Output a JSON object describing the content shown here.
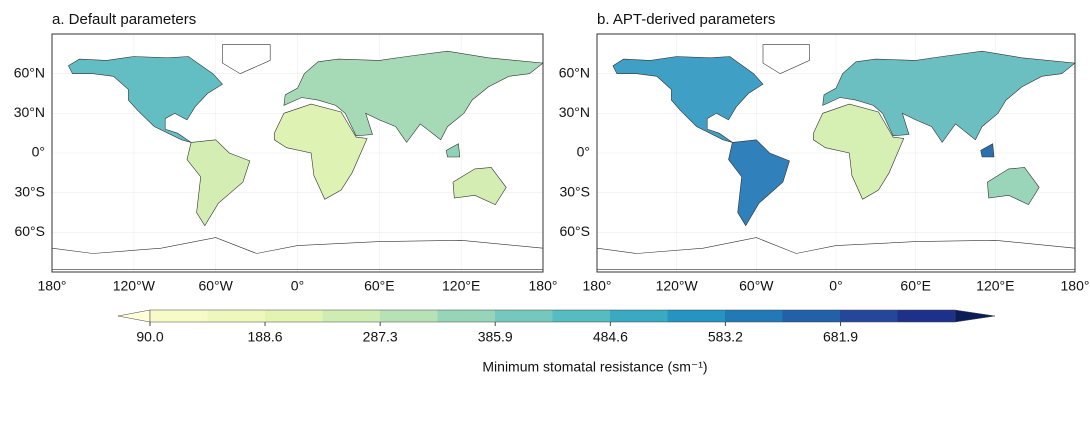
{
  "panels": [
    {
      "title": "a. Default parameters"
    },
    {
      "title": "b. APT-derived parameters"
    }
  ],
  "lat_ticks": [
    {
      "value": 60,
      "label": "60°N"
    },
    {
      "value": 30,
      "label": "30°N"
    },
    {
      "value": 0,
      "label": "0°"
    },
    {
      "value": -30,
      "label": "30°S"
    },
    {
      "value": -60,
      "label": "60°S"
    }
  ],
  "lon_ticks": [
    {
      "value": -180,
      "label": "180°"
    },
    {
      "value": -120,
      "label": "120°W"
    },
    {
      "value": -60,
      "label": "60°W"
    },
    {
      "value": 0,
      "label": "0°"
    },
    {
      "value": 60,
      "label": "60°E"
    },
    {
      "value": 120,
      "label": "120°E"
    },
    {
      "value": 180,
      "label": "180°"
    }
  ],
  "colorbar": {
    "label": "Minimum stomatal resistance (sm⁻¹)",
    "clim": [
      90,
      780
    ],
    "ticks": [
      {
        "value": 90,
        "label": "90.0"
      },
      188.6,
      287.3,
      385.9,
      484.6,
      583.2,
      681.9
    ],
    "colors": [
      "#f6fbc8",
      "#eef8bc",
      "#e2f3b2",
      "#cfecb3",
      "#b6e2b6",
      "#97d5b9",
      "#74c8bd",
      "#55bcc2",
      "#3aaac3",
      "#2594c0",
      "#2179b5",
      "#2260a8",
      "#24479b",
      "#1d318a"
    ],
    "under_color": "#ffffd9",
    "over_color": "#0b1d58"
  }
}
